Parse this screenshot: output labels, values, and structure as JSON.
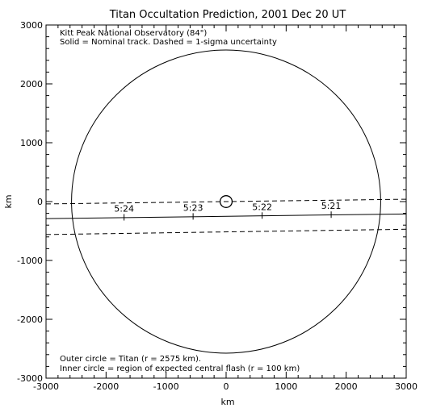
{
  "chart_data": {
    "type": "scatter",
    "title": "Titan Occultation Prediction, 2001 Dec 20 UT",
    "xlabel": "km",
    "ylabel": "km",
    "xlim": [
      -3000,
      3000
    ],
    "ylim": [
      -3000,
      3000
    ],
    "xticks": [
      -3000,
      -2000,
      -1000,
      0,
      1000,
      2000,
      3000
    ],
    "yticks": [
      -3000,
      -2000,
      -1000,
      0,
      1000,
      2000,
      3000
    ],
    "annotations_top": [
      "Kitt Peak National Observatory (84\")",
      "Solid = Nominal track.  Dashed = 1-sigma uncertainty"
    ],
    "annotations_bottom": [
      "Outer circle = Titan (r = 2575 km).",
      "Inner circle = region of expected central flash (r = 100 km)"
    ],
    "circles": [
      {
        "name": "Titan",
        "cx": 0,
        "cy": 0,
        "r": 2575
      },
      {
        "name": "central flash region",
        "cx": 0,
        "cy": 0,
        "r": 100
      }
    ],
    "tracks": [
      {
        "style": "solid",
        "x": [
          -3000,
          3000
        ],
        "y": [
          -290,
          -210
        ]
      },
      {
        "style": "dashed",
        "x": [
          -3000,
          3000
        ],
        "y": [
          -40,
          40
        ]
      },
      {
        "style": "dashed",
        "x": [
          -3000,
          3000
        ],
        "y": [
          -560,
          -470
        ]
      }
    ],
    "time_marks": [
      {
        "label": "5:24",
        "x": -1700,
        "y": -267
      },
      {
        "label": "5:23",
        "x": -550,
        "y": -252
      },
      {
        "label": "5:22",
        "x": 600,
        "y": -237
      },
      {
        "label": "5:21",
        "x": 1750,
        "y": -222
      }
    ]
  }
}
